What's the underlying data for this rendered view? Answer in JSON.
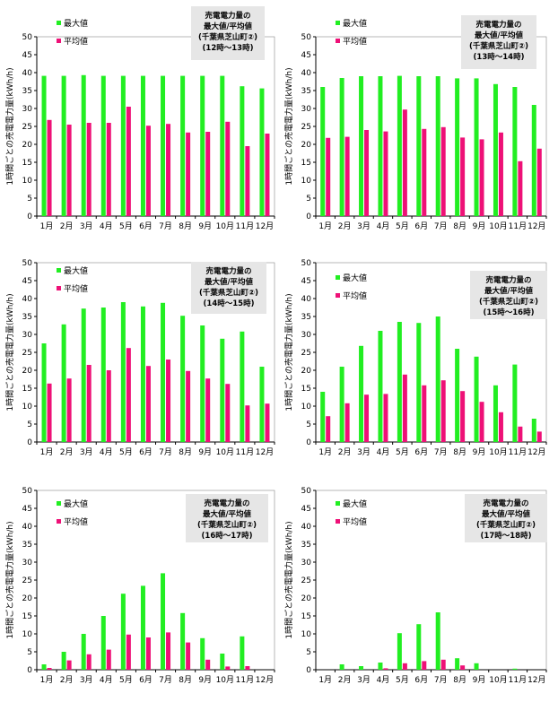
{
  "colors": {
    "max": "#22ee22",
    "avg": "#ee1177",
    "title_box": "#e6e6e6",
    "axis": "#000000",
    "grid_bg": "#ffffff"
  },
  "legend": {
    "max_label": "最大値",
    "avg_label": "平均値"
  },
  "chart_data": [
    {
      "type": "bar",
      "title": [
        "売電電力量の",
        "最大値/平均値",
        "(千葉県芝山町②)",
        "(12時～13時)"
      ],
      "ylabel": "1時間ごとの売電電力量(kWh/h)",
      "ylim": [
        0,
        50
      ],
      "yticks": [
        0,
        5,
        10,
        15,
        20,
        25,
        30,
        35,
        40,
        45,
        50
      ],
      "categories": [
        "1月",
        "2月",
        "3月",
        "4月",
        "5月",
        "6月",
        "7月",
        "8月",
        "9月",
        "10月",
        "11月",
        "12月"
      ],
      "series": [
        {
          "name": "最大値",
          "values": [
            39.1,
            39.1,
            39.3,
            39.1,
            39.1,
            39.1,
            39.1,
            39.1,
            39.1,
            39.1,
            36.2,
            35.6
          ]
        },
        {
          "name": "平均値",
          "values": [
            26.8,
            25.5,
            26.0,
            26.0,
            30.5,
            25.2,
            25.7,
            23.3,
            23.5,
            26.3,
            19.5,
            23.0
          ]
        }
      ]
    },
    {
      "type": "bar",
      "title": [
        "売電電力量の",
        "最大値/平均値",
        "(千葉県芝山町②)",
        "(13時～14時)"
      ],
      "ylabel": "1時間ごとの売電電力量(kWh/h)",
      "ylim": [
        0,
        50
      ],
      "yticks": [
        0,
        5,
        10,
        15,
        20,
        25,
        30,
        35,
        40,
        45,
        50
      ],
      "categories": [
        "1月",
        "2月",
        "3月",
        "4月",
        "5月",
        "6月",
        "7月",
        "8月",
        "9月",
        "10月",
        "11月",
        "12月"
      ],
      "series": [
        {
          "name": "最大値",
          "values": [
            36.0,
            38.5,
            39.0,
            39.0,
            39.1,
            39.0,
            39.0,
            38.4,
            38.4,
            36.8,
            36.0,
            31.0
          ]
        },
        {
          "name": "平均値",
          "values": [
            21.8,
            22.1,
            24.0,
            23.6,
            29.7,
            24.3,
            24.8,
            21.9,
            21.4,
            23.3,
            15.3,
            18.8
          ]
        }
      ]
    },
    {
      "type": "bar",
      "title": [
        "売電電力量の",
        "最大値/平均値",
        "(千葉県芝山町②)",
        "(14時～15時)"
      ],
      "ylabel": "1時間ごとの売電電力量(kWh/h)",
      "ylim": [
        0,
        50
      ],
      "yticks": [
        0,
        5,
        10,
        15,
        20,
        25,
        30,
        35,
        40,
        45,
        50
      ],
      "categories": [
        "1月",
        "2月",
        "3月",
        "4月",
        "5月",
        "6月",
        "7月",
        "8月",
        "9月",
        "10月",
        "11月",
        "12月"
      ],
      "series": [
        {
          "name": "最大値",
          "values": [
            27.5,
            32.8,
            37.2,
            37.5,
            39.0,
            37.8,
            38.8,
            35.2,
            32.5,
            28.8,
            30.8,
            21.0
          ]
        },
        {
          "name": "平均値",
          "values": [
            16.3,
            17.7,
            21.5,
            20.0,
            26.2,
            21.2,
            23.0,
            19.8,
            17.7,
            16.2,
            10.2,
            10.7
          ]
        }
      ]
    },
    {
      "type": "bar",
      "title": [
        "売電電力量の",
        "最大値/平均値",
        "(千葉県芝山町②)",
        "(15時～16時)"
      ],
      "ylabel": "1時間ごとの売電電力量(kWh/h)",
      "ylim": [
        0,
        50
      ],
      "yticks": [
        0,
        5,
        10,
        15,
        20,
        25,
        30,
        35,
        40,
        45,
        50
      ],
      "categories": [
        "1月",
        "2月",
        "3月",
        "4月",
        "5月",
        "6月",
        "7月",
        "8月",
        "9月",
        "10月",
        "11月",
        "12月"
      ],
      "series": [
        {
          "name": "最大値",
          "values": [
            14.0,
            21.0,
            26.8,
            31.0,
            33.5,
            33.2,
            35.0,
            26.0,
            23.8,
            15.8,
            21.6,
            6.5
          ]
        },
        {
          "name": "平均値",
          "values": [
            7.2,
            10.8,
            13.2,
            13.4,
            18.8,
            15.8,
            17.2,
            14.2,
            11.2,
            8.3,
            4.3,
            2.9
          ]
        }
      ]
    },
    {
      "type": "bar",
      "title": [
        "売電電力量の",
        "最大値/平均値",
        "(千葉県芝山町②)",
        "(16時～17時)"
      ],
      "ylabel": "1時間ごとの売電電力量(kWh/h)",
      "ylim": [
        0,
        50
      ],
      "yticks": [
        0,
        5,
        10,
        15,
        20,
        25,
        30,
        35,
        40,
        45,
        50
      ],
      "categories": [
        "1月",
        "2月",
        "3月",
        "4月",
        "5月",
        "6月",
        "7月",
        "8月",
        "9月",
        "10月",
        "11月",
        "12月"
      ],
      "series": [
        {
          "name": "最大値",
          "values": [
            1.5,
            5.0,
            10.0,
            15.0,
            21.2,
            23.4,
            26.9,
            15.8,
            8.8,
            4.5,
            9.3,
            0
          ]
        },
        {
          "name": "平均値",
          "values": [
            0.5,
            2.6,
            4.3,
            5.6,
            9.8,
            9.0,
            10.4,
            7.6,
            2.8,
            0.9,
            1.0,
            0
          ]
        }
      ]
    },
    {
      "type": "bar",
      "title": [
        "売電電力量の",
        "最大値/平均値",
        "(千葉県芝山町②)",
        "(17時～18時)"
      ],
      "ylabel": "1時間ごとの売電電力量(kWh/h)",
      "ylim": [
        0,
        50
      ],
      "yticks": [
        0,
        5,
        10,
        15,
        20,
        25,
        30,
        35,
        40,
        45,
        50
      ],
      "categories": [
        "1月",
        "2月",
        "3月",
        "4月",
        "5月",
        "6月",
        "7月",
        "8月",
        "9月",
        "10月",
        "11月",
        "12月"
      ],
      "series": [
        {
          "name": "最大値",
          "values": [
            0,
            1.5,
            1.0,
            2.0,
            10.2,
            12.7,
            16.0,
            3.2,
            1.8,
            0,
            0.3,
            0
          ]
        },
        {
          "name": "平均値",
          "values": [
            0,
            0,
            0,
            0.4,
            1.8,
            2.4,
            2.8,
            1.2,
            0,
            0,
            0,
            0
          ]
        }
      ]
    }
  ]
}
